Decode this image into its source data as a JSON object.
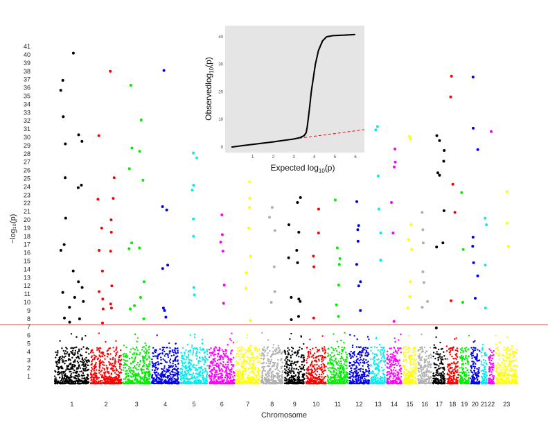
{
  "chart_data": [
    {
      "type": "scatter",
      "title": "",
      "xlabel": "Chromosome",
      "ylabel": "−log₁₀(p)",
      "ylim": [
        0,
        42
      ],
      "y_ticks": [
        1,
        2,
        3,
        4,
        5,
        6,
        7,
        8,
        9,
        10,
        11,
        12,
        13,
        14,
        15,
        16,
        17,
        18,
        19,
        20,
        21,
        22,
        23,
        24,
        25,
        26,
        27,
        28,
        29,
        30,
        31,
        32,
        33,
        34,
        35,
        36,
        37,
        38,
        39,
        40,
        41
      ],
      "threshold": 7.3,
      "threshold_color": "#f08080",
      "grid": false,
      "legend": "none",
      "chromosomes": [
        {
          "label": "1",
          "color": "#000000",
          "size": 1.0
        },
        {
          "label": "2",
          "color": "#ff0000",
          "size": 0.9
        },
        {
          "label": "3",
          "color": "#00ee00",
          "size": 0.8
        },
        {
          "label": "4",
          "color": "#0000ee",
          "size": 0.8
        },
        {
          "label": "5",
          "color": "#00eeee",
          "size": 0.8
        },
        {
          "label": "6",
          "color": "#ff00ff",
          "size": 0.75
        },
        {
          "label": "7",
          "color": "#ffff00",
          "size": 0.7
        },
        {
          "label": "8",
          "color": "#b0b0b0",
          "size": 0.65
        },
        {
          "label": "9",
          "color": "#000000",
          "size": 0.6
        },
        {
          "label": "10",
          "color": "#ff0000",
          "size": 0.6
        },
        {
          "label": "11",
          "color": "#00ee00",
          "size": 0.6
        },
        {
          "label": "12",
          "color": "#0000ee",
          "size": 0.6
        },
        {
          "label": "13",
          "color": "#00eeee",
          "size": 0.45
        },
        {
          "label": "14",
          "color": "#ff00ff",
          "size": 0.45
        },
        {
          "label": "15",
          "color": "#ffff00",
          "size": 0.42
        },
        {
          "label": "16",
          "color": "#b0b0b0",
          "size": 0.42
        },
        {
          "label": "17",
          "color": "#000000",
          "size": 0.38
        },
        {
          "label": "18",
          "color": "#ff0000",
          "size": 0.36
        },
        {
          "label": "19",
          "color": "#00ee00",
          "size": 0.3
        },
        {
          "label": "20",
          "color": "#0000ee",
          "size": 0.3
        },
        {
          "label": "21",
          "color": "#00eeee",
          "size": 0.2
        },
        {
          "label": "22",
          "color": "#ff00ff",
          "size": 0.2
        },
        {
          "label": "23",
          "color": "#ffff00",
          "size": 0.65
        }
      ],
      "peaks": [
        {
          "chr": "1",
          "y": [
            8.1,
            11.2,
            17.0,
            16.3,
            25.1,
            29.2,
            32.5,
            35.7,
            36.9,
            20.2
          ]
        },
        {
          "chr": "1",
          "y": [
            40.2,
            13.8,
            10.6,
            9.4,
            7.6
          ]
        },
        {
          "chr": "1",
          "y": [
            30.3,
            29.5,
            24.2,
            23.9,
            12.5,
            11.8,
            10.1,
            8.0
          ]
        },
        {
          "chr": "2",
          "y": [
            30.2,
            22.5,
            19.0,
            16.3,
            13.8,
            11.3,
            10.4,
            9.2,
            7.5
          ]
        },
        {
          "chr": "2",
          "y": [
            38.0,
            25.1,
            22.6,
            20.0,
            18.5,
            16.2,
            12.0,
            9.8,
            9.3
          ]
        },
        {
          "chr": "3",
          "y": [
            36.3,
            28.7,
            26.2,
            17.2,
            16.5,
            9.6,
            9.2
          ]
        },
        {
          "chr": "3",
          "y": [
            32.1,
            28.3,
            24.8,
            16.6,
            12.5,
            10.6,
            8.0
          ]
        },
        {
          "chr": "4",
          "y": [
            38.1,
            21.6,
            21.2,
            14.5,
            14.1,
            9.3,
            9.0,
            8.2
          ]
        },
        {
          "chr": "5",
          "y": [
            28.1,
            27.5,
            24.2,
            23.6,
            20.1,
            18.0,
            11.8,
            10.9
          ]
        },
        {
          "chr": "6",
          "y": [
            20.6,
            18.2,
            17.3,
            16.2,
            12.1,
            9.9
          ]
        },
        {
          "chr": "7",
          "y": [
            24.6,
            22.6,
            21.5,
            19.0,
            15.6,
            13.6,
            11.7,
            7.8
          ]
        },
        {
          "chr": "8",
          "y": [
            21.5,
            20.3,
            18.7,
            14.3,
            11.3,
            10.0
          ]
        },
        {
          "chr": "9",
          "y": [
            19.4,
            15.4,
            10.6,
            7.9
          ]
        },
        {
          "chr": "9",
          "y": [
            22.7,
            22.1,
            18.5,
            16.3,
            14.8,
            10.4,
            10.1,
            8.3
          ]
        },
        {
          "chr": "10",
          "y": [
            21.3,
            18.4,
            15.6,
            14.3,
            8.1
          ]
        },
        {
          "chr": "11",
          "y": [
            22.4,
            16.6,
            15.3,
            14.6,
            12.1,
            9.7,
            8.3
          ]
        },
        {
          "chr": "12",
          "y": [
            22.2,
            19.3,
            18.8,
            17.4,
            14.6,
            12.5,
            12.0,
            9.0
          ]
        },
        {
          "chr": "13",
          "y": [
            30.9,
            31.3,
            25.3,
            21.3,
            18.4,
            15.1
          ]
        },
        {
          "chr": "14",
          "y": [
            27.0,
            26.4,
            28.6,
            22.1,
            18.4,
            7.7
          ]
        },
        {
          "chr": "15",
          "y": [
            30.1,
            29.8,
            19.4,
            17.6,
            16.4,
            12.5,
            10.7,
            9.3
          ]
        },
        {
          "chr": "16",
          "y": [
            20.9,
            18.8,
            17.2,
            13.7,
            12.4,
            10.1,
            9.4
          ]
        },
        {
          "chr": "17",
          "y": [
            30.2,
            29.6,
            25.7,
            25.4,
            16.7,
            6.9
          ]
        },
        {
          "chr": "17",
          "y": [
            28.4,
            27.1,
            21.1,
            17.2
          ]
        },
        {
          "chr": "18",
          "y": [
            37.4,
            34.9,
            24.3,
            20.9,
            10.2
          ]
        },
        {
          "chr": "19",
          "y": [
            23.3,
            16.4,
            10.0
          ]
        },
        {
          "chr": "20",
          "y": [
            37.3,
            31.1,
            28.5,
            17.9,
            16.8,
            14.8,
            13.2,
            10.5
          ]
        },
        {
          "chr": "21",
          "y": [
            20.2,
            19.4,
            14.5,
            9.3
          ]
        },
        {
          "chr": "22",
          "y": [
            30.7
          ]
        },
        {
          "chr": "23",
          "y": [
            23.4,
            19.6,
            16.8
          ]
        }
      ]
    },
    {
      "type": "scatter",
      "title": "",
      "xlabel_main": "Expected log",
      "xlabel_sub": "10",
      "xlabel_tail": "(p)",
      "ylabel_main": "Observedlog",
      "ylabel_sub": "10",
      "ylabel_tail": "(p)",
      "xlim": [
        0,
        6.3
      ],
      "ylim": [
        0,
        42
      ],
      "x_ticks": [
        1,
        2,
        3,
        4,
        5,
        6
      ],
      "y_ticks": [
        0,
        10,
        20,
        30,
        40
      ],
      "background": "#e5e5e5",
      "reference_line_color": "#ff0000",
      "qq_curve": [
        [
          0.0,
          0.0
        ],
        [
          0.5,
          0.5
        ],
        [
          1.0,
          0.95
        ],
        [
          1.5,
          1.4
        ],
        [
          2.0,
          1.85
        ],
        [
          2.5,
          2.4
        ],
        [
          3.0,
          2.9
        ],
        [
          3.3,
          3.4
        ],
        [
          3.5,
          4.1
        ],
        [
          3.6,
          5.2
        ],
        [
          3.65,
          7.0
        ],
        [
          3.7,
          10.0
        ],
        [
          3.78,
          15.0
        ],
        [
          3.85,
          20.0
        ],
        [
          3.95,
          25.0
        ],
        [
          4.05,
          30.0
        ],
        [
          4.2,
          35.0
        ],
        [
          4.4,
          38.5
        ],
        [
          4.6,
          40.0
        ],
        [
          4.9,
          40.4
        ],
        [
          5.2,
          40.5
        ],
        [
          5.5,
          40.6
        ],
        [
          6.0,
          40.8
        ]
      ]
    }
  ]
}
